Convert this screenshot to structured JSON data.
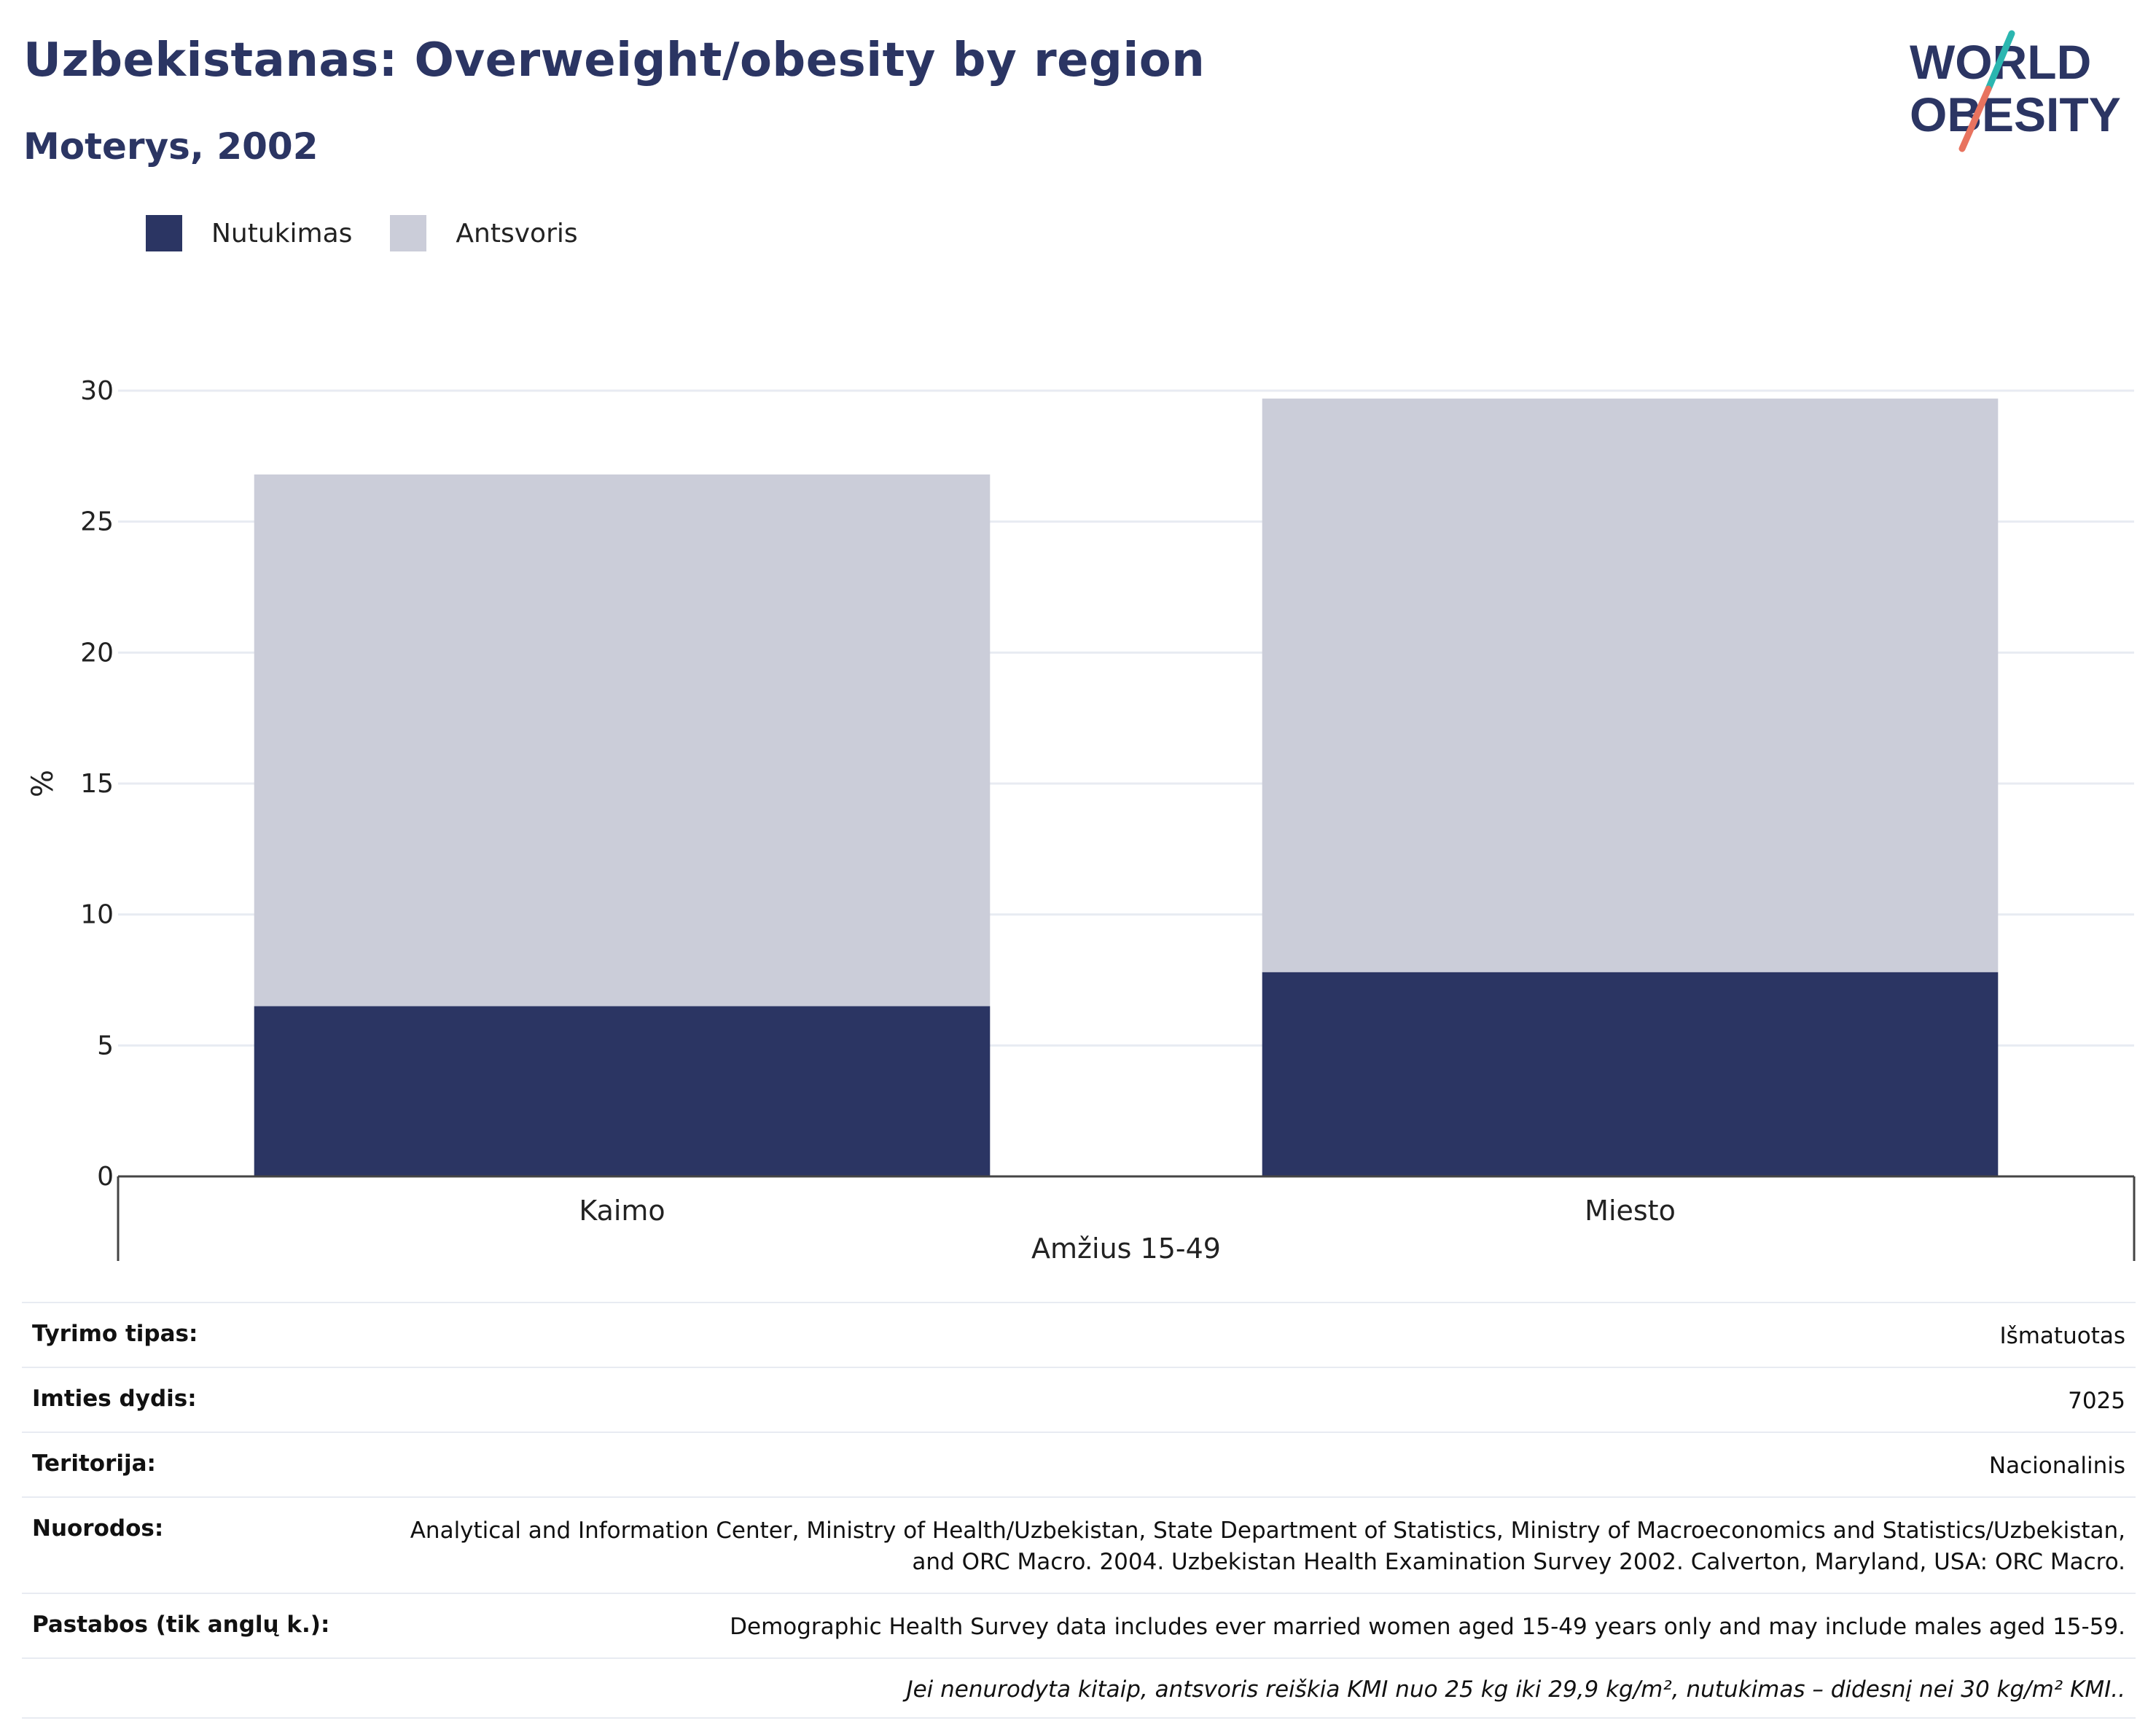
{
  "header": {
    "title": "Uzbekistanas: Overweight/obesity by region",
    "subtitle": "Moterys, 2002"
  },
  "logo": {
    "line1": "WORLD",
    "line2": "OBESITY",
    "accent_teal": "#2bb6b0",
    "accent_coral": "#e8735f",
    "text_color": "#2b3563"
  },
  "legend": [
    {
      "label": "Nutukimas",
      "color": "#2b3563"
    },
    {
      "label": "Antsvoris",
      "color": "#cbcdd9"
    }
  ],
  "chart_data": {
    "type": "bar",
    "stacked": true,
    "categories": [
      "Kaimo",
      "Miesto"
    ],
    "series": [
      {
        "name": "Nutukimas",
        "values": [
          6.5,
          7.8
        ],
        "color": "#2b3563"
      },
      {
        "name": "Antsvoris",
        "values": [
          20.3,
          21.9
        ],
        "color": "#cbcdd9"
      }
    ],
    "ylabel": "%",
    "xlabel": "Amžius 15-49",
    "ylim": [
      0,
      30
    ],
    "yticks": [
      0,
      5,
      10,
      15,
      20,
      25,
      30
    ],
    "grid": true
  },
  "info": {
    "survey_type": {
      "label": "Tyrimo tipas:",
      "value": "Išmatuotas"
    },
    "sample_size": {
      "label": "Imties dydis:",
      "value": "7025"
    },
    "territory": {
      "label": "Teritorija:",
      "value": "Nacionalinis"
    },
    "references": {
      "label": "Nuorodos:",
      "value": "Analytical and Information Center, Ministry of Health/Uzbekistan, State Department of Statistics, Ministry of Macroeconomics and Statistics/Uzbekistan, and ORC Macro. 2004. Uzbekistan Health Examination Survey 2002. Calverton, Maryland, USA: ORC Macro."
    },
    "notes": {
      "label": "Pastabos (tik anglų k.):",
      "value": "Demographic Health Survey data includes ever married women aged 15-49 years only and may include males aged 15-59."
    },
    "definition_note": "Jei nenurodyta kitaip, antsvoris reiškia KMI nuo 25 kg iki 29,9 kg/m², nutukimas – didesnį nei 30 kg/m² KMI.."
  }
}
